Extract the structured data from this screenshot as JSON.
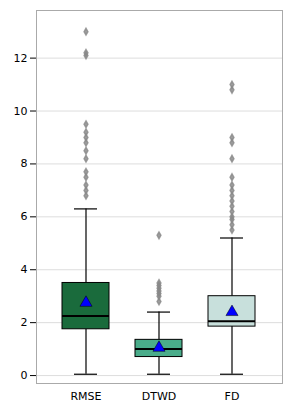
{
  "chart_data": {
    "type": "box",
    "categories": [
      "RMSE",
      "DTWD",
      "FD"
    ],
    "colors": [
      "#1a6b3c",
      "#4aac8a",
      "#c8e0dc"
    ],
    "whislo": [
      0.05,
      0.05,
      0.05
    ],
    "q1": [
      1.75,
      0.7,
      1.85
    ],
    "med": [
      2.25,
      1.0,
      2.05
    ],
    "q3": [
      3.5,
      1.35,
      3.0
    ],
    "whishi": [
      6.3,
      2.4,
      5.2
    ],
    "means": {
      "values": [
        2.75,
        1.05,
        2.4
      ],
      "color": "blue",
      "marker": "triangle"
    },
    "fliers": {
      "values": [
        [
          6.8,
          7.0,
          7.2,
          7.5,
          7.7,
          8.2,
          8.5,
          8.8,
          9.0,
          9.2,
          9.5,
          12.1,
          12.2,
          13.0
        ],
        [
          2.8,
          3.0,
          3.1,
          3.2,
          3.3,
          3.4,
          3.5,
          5.3
        ],
        [
          5.5,
          5.7,
          5.9,
          6.0,
          6.2,
          6.4,
          6.6,
          6.8,
          7.0,
          7.2,
          7.5,
          8.2,
          8.8,
          9.0,
          10.8,
          11.0
        ]
      ],
      "color": "#888888",
      "marker": "diamond"
    },
    "ylim": [
      -0.3,
      13.8
    ],
    "yticks": [
      0,
      2,
      4,
      6,
      8,
      10,
      12
    ],
    "grid": true
  }
}
